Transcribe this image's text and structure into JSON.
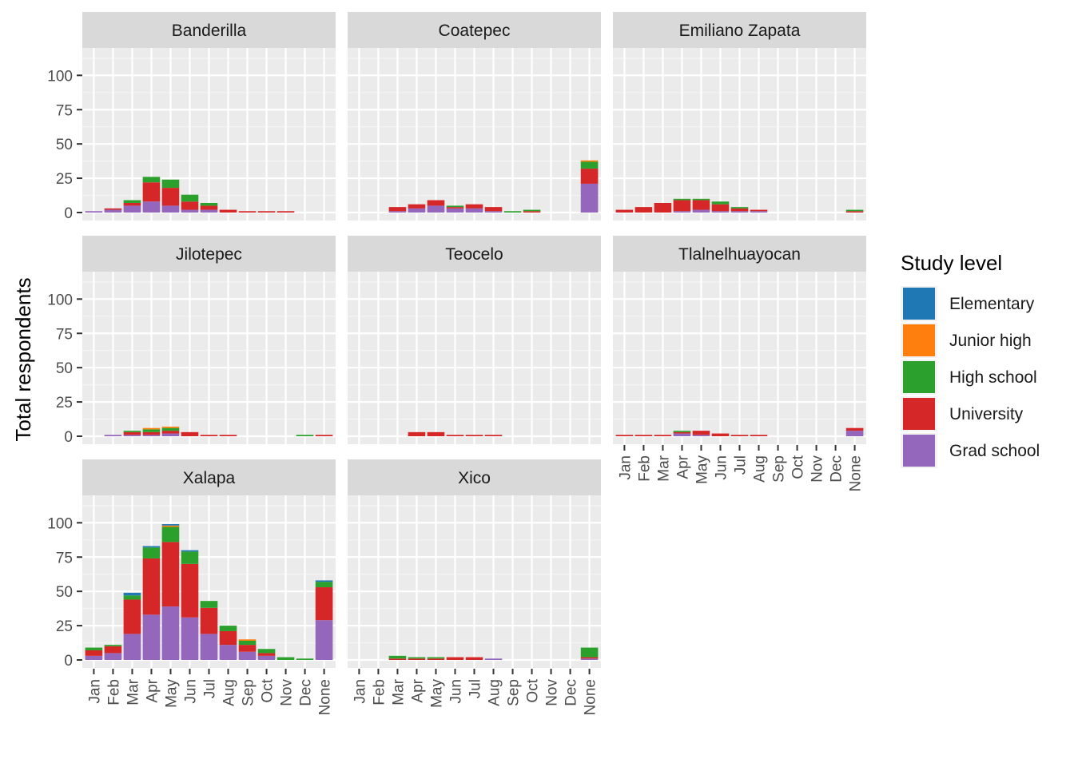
{
  "chart_data": {
    "type": "bar",
    "stacked": true,
    "layout": "faceted",
    "ylabel": "Total respondents",
    "xlabel": "",
    "ylim": [
      0,
      120
    ],
    "y_ticks": [
      0,
      25,
      50,
      75,
      100
    ],
    "categories": [
      "Jan",
      "Feb",
      "Mar",
      "Apr",
      "May",
      "Jun",
      "Jul",
      "Aug",
      "Sep",
      "Oct",
      "Nov",
      "Dec",
      "None"
    ],
    "legend": {
      "title": "Study level",
      "position": "right",
      "entries": [
        {
          "name": "Elementary",
          "color": "#1f77b4"
        },
        {
          "name": "Junior high",
          "color": "#ff7f0e"
        },
        {
          "name": "High school",
          "color": "#2ca02c"
        },
        {
          "name": "University",
          "color": "#d62728"
        },
        {
          "name": "Grad school",
          "color": "#9467bd"
        }
      ]
    },
    "stack_order_bottom_to_top": [
      "Grad school",
      "University",
      "High school",
      "Junior high",
      "Elementary"
    ],
    "panels": [
      {
        "title": "Banderilla",
        "series": [
          {
            "name": "Grad school",
            "values": [
              1,
              2,
              5,
              8,
              5,
              2,
              2,
              0,
              0,
              0,
              0,
              0,
              0
            ]
          },
          {
            "name": "University",
            "values": [
              0,
              1,
              2,
              14,
              13,
              6,
              3,
              2,
              1,
              1,
              1,
              0,
              0
            ]
          },
          {
            "name": "High school",
            "values": [
              0,
              0,
              2,
              4,
              6,
              5,
              2,
              0,
              0,
              0,
              0,
              0,
              0
            ]
          },
          {
            "name": "Junior high",
            "values": [
              0,
              0,
              0,
              0,
              0,
              0,
              0,
              0,
              0,
              0,
              0,
              0,
              0
            ]
          },
          {
            "name": "Elementary",
            "values": [
              0,
              0,
              0,
              0,
              0,
              0,
              0,
              0,
              0,
              0,
              0,
              0,
              0
            ]
          }
        ]
      },
      {
        "title": "Coatepec",
        "series": [
          {
            "name": "Grad school",
            "values": [
              0,
              0,
              1,
              3,
              5,
              3,
              3,
              1,
              0,
              0,
              0,
              0,
              21
            ]
          },
          {
            "name": "University",
            "values": [
              0,
              0,
              3,
              3,
              4,
              1,
              3,
              3,
              0,
              1,
              0,
              0,
              11
            ]
          },
          {
            "name": "High school",
            "values": [
              0,
              0,
              0,
              0,
              0,
              1,
              0,
              0,
              1,
              1,
              0,
              0,
              5
            ]
          },
          {
            "name": "Junior high",
            "values": [
              0,
              0,
              0,
              0,
              0,
              0,
              0,
              0,
              0,
              0,
              0,
              0,
              1
            ]
          },
          {
            "name": "Elementary",
            "values": [
              0,
              0,
              0,
              0,
              0,
              0,
              0,
              0,
              0,
              0,
              0,
              0,
              0
            ]
          }
        ]
      },
      {
        "title": "Emiliano Zapata",
        "series": [
          {
            "name": "Grad school",
            "values": [
              0,
              0,
              0,
              1,
              2,
              1,
              1,
              1,
              0,
              0,
              0,
              0,
              0
            ]
          },
          {
            "name": "University",
            "values": [
              2,
              4,
              7,
              8,
              7,
              5,
              2,
              1,
              0,
              0,
              0,
              0,
              1
            ]
          },
          {
            "name": "High school",
            "values": [
              0,
              0,
              0,
              1,
              1,
              2,
              1,
              0,
              0,
              0,
              0,
              0,
              1
            ]
          },
          {
            "name": "Junior high",
            "values": [
              0,
              0,
              0,
              0,
              0,
              0,
              0,
              0,
              0,
              0,
              0,
              0,
              0
            ]
          },
          {
            "name": "Elementary",
            "values": [
              0,
              0,
              0,
              0,
              0,
              0,
              0,
              0,
              0,
              0,
              0,
              0,
              0
            ]
          }
        ]
      },
      {
        "title": "Jilotepec",
        "series": [
          {
            "name": "Grad school",
            "values": [
              0,
              1,
              1,
              1,
              2,
              0,
              0,
              0,
              0,
              0,
              0,
              0,
              0
            ]
          },
          {
            "name": "University",
            "values": [
              0,
              0,
              2,
              2,
              2,
              3,
              1,
              1,
              0,
              0,
              0,
              0,
              1
            ]
          },
          {
            "name": "High school",
            "values": [
              0,
              0,
              1,
              2,
              2,
              0,
              0,
              0,
              0,
              0,
              0,
              1,
              0
            ]
          },
          {
            "name": "Junior high",
            "values": [
              0,
              0,
              0,
              1,
              1,
              0,
              0,
              0,
              0,
              0,
              0,
              0,
              0
            ]
          },
          {
            "name": "Elementary",
            "values": [
              0,
              0,
              0,
              0,
              0,
              0,
              0,
              0,
              0,
              0,
              0,
              0,
              0
            ]
          }
        ]
      },
      {
        "title": "Teocelo",
        "series": [
          {
            "name": "Grad school",
            "values": [
              0,
              0,
              0,
              0,
              0,
              0,
              0,
              0,
              0,
              0,
              0,
              0,
              0
            ]
          },
          {
            "name": "University",
            "values": [
              0,
              0,
              0,
              3,
              3,
              1,
              1,
              1,
              0,
              0,
              0,
              0,
              0
            ]
          },
          {
            "name": "High school",
            "values": [
              0,
              0,
              0,
              0,
              0,
              0,
              0,
              0,
              0,
              0,
              0,
              0,
              0
            ]
          },
          {
            "name": "Junior high",
            "values": [
              0,
              0,
              0,
              0,
              0,
              0,
              0,
              0,
              0,
              0,
              0,
              0,
              0
            ]
          },
          {
            "name": "Elementary",
            "values": [
              0,
              0,
              0,
              0,
              0,
              0,
              0,
              0,
              0,
              0,
              0,
              0,
              0
            ]
          }
        ]
      },
      {
        "title": "Tlalnelhuayocan",
        "series": [
          {
            "name": "Grad school",
            "values": [
              0,
              0,
              0,
              2,
              1,
              0,
              0,
              0,
              0,
              0,
              0,
              0,
              4
            ]
          },
          {
            "name": "University",
            "values": [
              1,
              1,
              1,
              1,
              3,
              2,
              1,
              1,
              0,
              0,
              0,
              0,
              2
            ]
          },
          {
            "name": "High school",
            "values": [
              0,
              0,
              0,
              1,
              0,
              0,
              0,
              0,
              0,
              0,
              0,
              0,
              0
            ]
          },
          {
            "name": "Junior high",
            "values": [
              0,
              0,
              0,
              0,
              0,
              0,
              0,
              0,
              0,
              0,
              0,
              0,
              0
            ]
          },
          {
            "name": "Elementary",
            "values": [
              0,
              0,
              0,
              0,
              0,
              0,
              0,
              0,
              0,
              0,
              0,
              0,
              0
            ]
          }
        ]
      },
      {
        "title": "Xalapa",
        "series": [
          {
            "name": "Grad school",
            "values": [
              3,
              5,
              19,
              33,
              39,
              31,
              19,
              11,
              6,
              3,
              0,
              0,
              29
            ]
          },
          {
            "name": "University",
            "values": [
              4,
              5,
              25,
              41,
              47,
              39,
              19,
              10,
              5,
              2,
              0,
              0,
              24
            ]
          },
          {
            "name": "High school",
            "values": [
              2,
              1,
              3,
              8,
              11,
              9,
              5,
              4,
              3,
              3,
              2,
              1,
              4
            ]
          },
          {
            "name": "Junior high",
            "values": [
              0,
              0,
              0,
              0,
              1,
              0,
              0,
              0,
              1,
              0,
              0,
              0,
              0
            ]
          },
          {
            "name": "Elementary",
            "values": [
              0,
              0,
              2,
              1,
              1,
              1,
              0,
              0,
              0,
              0,
              0,
              0,
              1
            ]
          }
        ]
      },
      {
        "title": "Xico",
        "series": [
          {
            "name": "Grad school",
            "values": [
              0,
              0,
              0,
              0,
              0,
              0,
              0,
              1,
              0,
              0,
              0,
              0,
              1
            ]
          },
          {
            "name": "University",
            "values": [
              0,
              0,
              1,
              1,
              1,
              2,
              2,
              0,
              0,
              0,
              0,
              0,
              1
            ]
          },
          {
            "name": "High school",
            "values": [
              0,
              0,
              2,
              1,
              1,
              0,
              0,
              0,
              0,
              0,
              0,
              0,
              7
            ]
          },
          {
            "name": "Junior high",
            "values": [
              0,
              0,
              0,
              0,
              0,
              0,
              0,
              0,
              0,
              0,
              0,
              0,
              0
            ]
          },
          {
            "name": "Elementary",
            "values": [
              0,
              0,
              0,
              0,
              0,
              0,
              0,
              0,
              0,
              0,
              0,
              0,
              0
            ]
          }
        ]
      }
    ]
  }
}
